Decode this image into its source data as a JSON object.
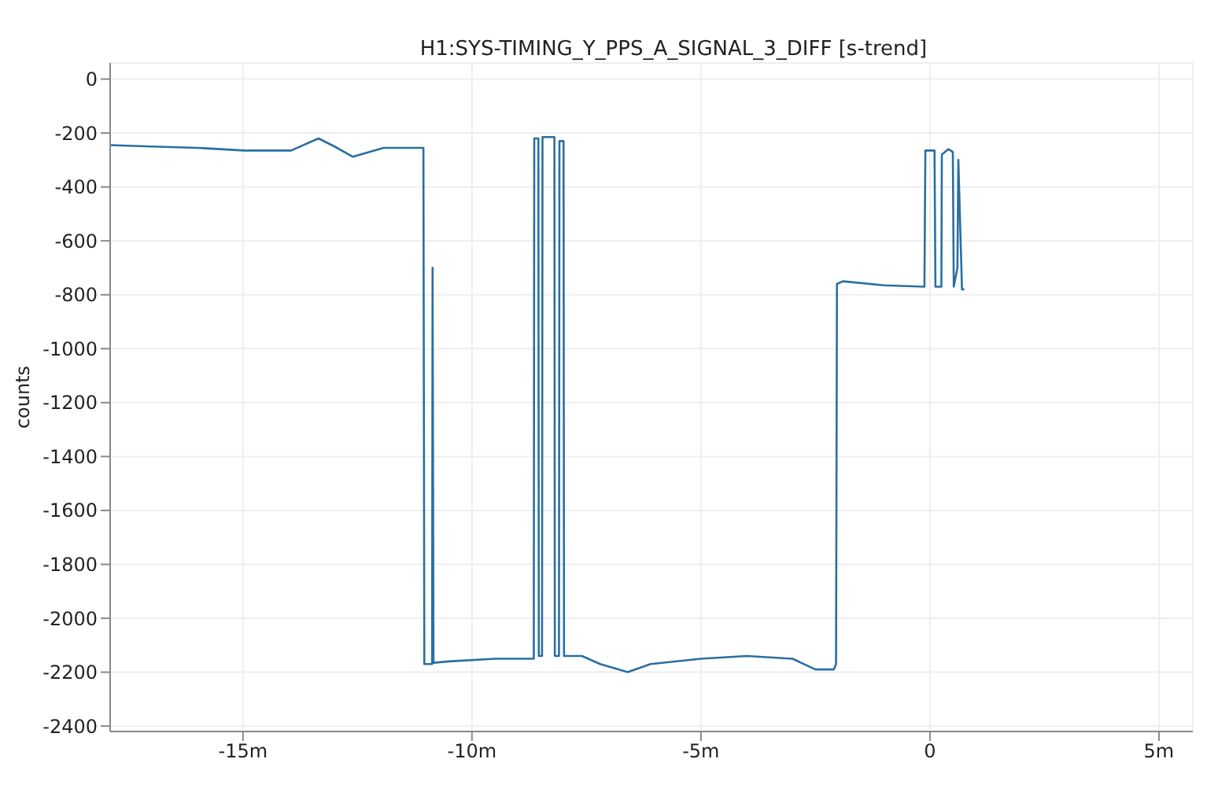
{
  "chart_data": {
    "type": "line",
    "title": "H1:SYS-TIMING_Y_PPS_A_SIGNAL_3_DIFF [s-trend]",
    "ylabel": "counts",
    "x": [
      -17.9,
      -17.0,
      -16.0,
      -14.97,
      -13.95,
      -13.35,
      -13.0,
      -12.6,
      -11.93,
      -11.25,
      -11.06,
      -11.04,
      -10.87,
      -10.86,
      -10.84,
      -10.5,
      -9.5,
      -8.9,
      -8.65,
      -8.64,
      -8.55,
      -8.54,
      -8.47,
      -8.46,
      -8.2,
      -8.19,
      -8.1,
      -8.09,
      -8.0,
      -7.99,
      -7.6,
      -7.2,
      -6.6,
      -6.1,
      -5.0,
      -4.0,
      -3.0,
      -2.5,
      -2.1,
      -2.05,
      -2.03,
      -1.9,
      -1.0,
      -0.12,
      -0.1,
      0.1,
      0.12,
      0.25,
      0.26,
      0.4,
      0.5,
      0.52,
      0.6,
      0.62,
      0.7,
      0.75
    ],
    "series": [
      {
        "color": "#2a6fa1",
        "values": [
          -245,
          -250,
          -255,
          -265,
          -265,
          -220,
          -250,
          -288,
          -255,
          -255,
          -255,
          -2170,
          -2170,
          -700,
          -2165,
          -2160,
          -2150,
          -2150,
          -2150,
          -220,
          -220,
          -2140,
          -2140,
          -215,
          -215,
          -2140,
          -2140,
          -230,
          -230,
          -2140,
          -2140,
          -2170,
          -2200,
          -2170,
          -2150,
          -2140,
          -2150,
          -2190,
          -2190,
          -2170,
          -760,
          -750,
          -765,
          -770,
          -265,
          -265,
          -770,
          -770,
          -280,
          -260,
          -270,
          -770,
          -700,
          -300,
          -780,
          -780
        ]
      }
    ],
    "xlim": [
      -17.9,
      5.74
    ],
    "ylim": [
      -2420,
      60
    ],
    "xticks": [
      {
        "value": -15,
        "label": "-15m"
      },
      {
        "value": -10,
        "label": "-10m"
      },
      {
        "value": -5,
        "label": "-5m"
      },
      0,
      {
        "value": 5,
        "label": "5m"
      }
    ],
    "yticks": [
      0,
      -200,
      -400,
      -600,
      -800,
      -1000,
      -1200,
      -1400,
      -1600,
      -1800,
      -2000,
      -2200,
      -2400
    ],
    "grid": true,
    "legend": false,
    "marker": "none",
    "line_style": "solid"
  }
}
